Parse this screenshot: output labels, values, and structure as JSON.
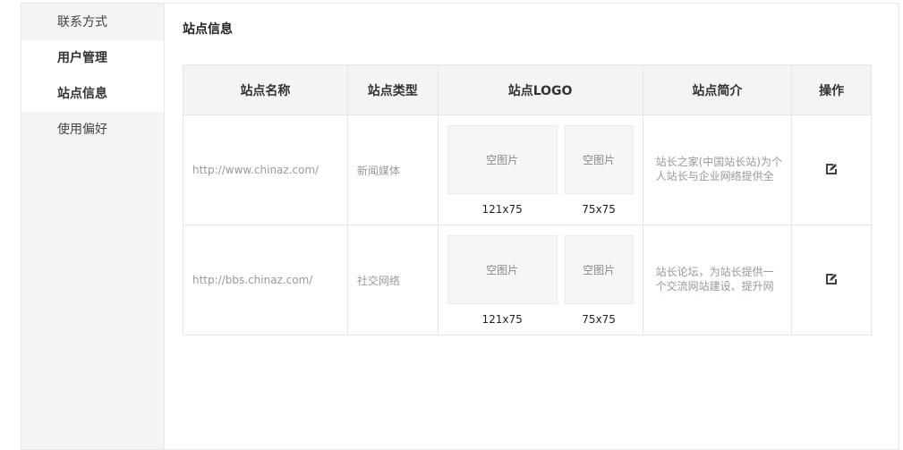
{
  "sidebar": {
    "items": [
      {
        "label": "联系方式"
      },
      {
        "label": "用户管理"
      },
      {
        "label": "站点信息"
      },
      {
        "label": "使用偏好"
      }
    ]
  },
  "page_title": "站点信息",
  "table": {
    "headers": [
      "站点名称",
      "站点类型",
      "站点LOGO",
      "站点简介",
      "操作"
    ],
    "rows": [
      {
        "name": "http://www.chinaz.com/",
        "type": "新闻媒体",
        "logo_large": "空图片",
        "logo_large_size": "121x75",
        "logo_small": "空图片",
        "logo_small_size": "75x75",
        "desc": "站长之家(中国站长站)为个人站长与企业网络提供全面的站长资讯、最新最",
        "action_icon": "edit-icon"
      },
      {
        "name": "http://bbs.chinaz.com/",
        "type": "社交网络",
        "logo_large": "空图片",
        "logo_large_size": "121x75",
        "logo_small": "空图片",
        "logo_small_size": "75x75",
        "desc": "站长论坛，为站长提供一个交流网站建设、提升网站流量、打造网站模式",
        "action_icon": "edit-icon"
      }
    ]
  }
}
